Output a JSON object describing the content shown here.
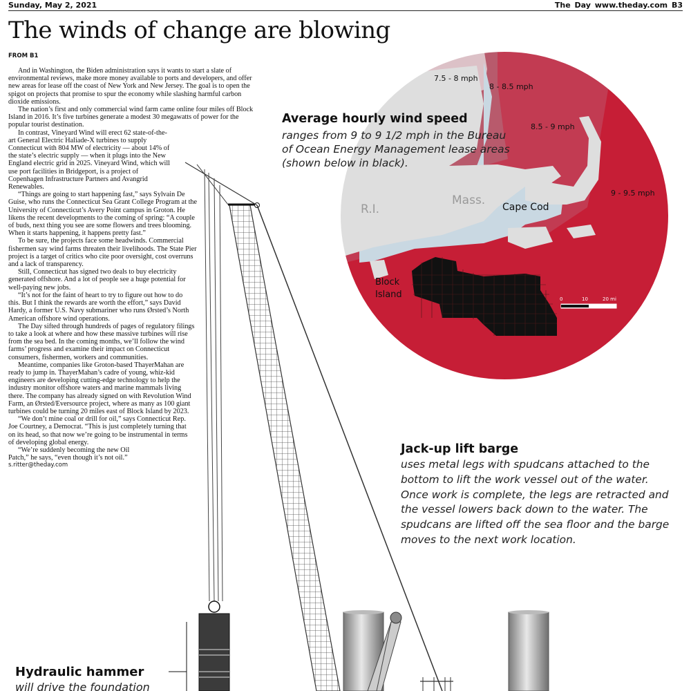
{
  "header": {
    "date": "Sunday, May 2, 2021",
    "paper": "The Day",
    "site": "www.theday.com",
    "page": "B3"
  },
  "headline": "The winds of change are blowing",
  "dateline": "FROM B1",
  "story": [
    "And in Washington, the Biden administration says it wants to start a slate of environmental reviews, make more money available to ports and developers, and offer new areas for lease off the coast of New York and New Jersey. The goal is to open the spigot on projects that promise to spur the economy while slashing harmful carbon dioxide emissions.",
    "The nation’s first and only commercial wind farm came online four miles off Block Island in 2016. It’s five turbines generate a modest 30 megawatts of power for the popular tourist destination.",
    "In contrast, Vineyard Wind will erect 62 state-of-the-art General Electric Haliade-X turbines to supply Connecticut with 804 MW of electricity — about 14% of the state’s electric supply — when it plugs into the New England electric grid in 2025. Vineyard Wind, which will use port facilities in Bridgeport, is a project of Copenhagen Infrastructure Partners and Avangrid Renewables.",
    "“Things are going to start happening fast,” says Sylvain De Guise, who runs the Connecticut Sea Grant College Program at the University of Connecticut’s Avery Point campus in Groton. He likens the recent developments to the coming of spring: “A couple of buds, next thing you see are some flowers and trees blooming. When it starts happening, it happens pretty fast.”",
    "To be sure, the projects face some headwinds. Commercial fishermen say wind farms threaten their livelihoods. The State Pier project is a target of critics who cite poor oversight, cost overruns and a lack of transparency.",
    "Still, Connecticut has signed two deals to buy electricity generated offshore. And a lot of people see a huge potential for well-paying new jobs.",
    "“It’s not for the faint of heart to try to figure out how to do this. But I think the rewards are worth the effort,” says David Hardy, a former U.S. Navy submariner who runs Ørsted’s North American offshore wind operations.",
    "The Day sifted through hundreds of pages of regulatory filings to take a look at where and how these massive turbines will rise from the sea bed. In the coming months, we’ll follow the wind farms’ progress and examine their impact on Connecticut consumers, fishermen, workers and communities.",
    "Meantime, companies like Groton-based ThayerMahan are ready to jump in. ThayerMahan’s cadre of young, whiz-kid engineers are developing cutting-edge technology to help the industry monitor offshore waters and marine mammals living there. The company has already signed on with Revolution Wind Farm, an Ørsted/Eversource project, where as many as 100 giant turbines could be turning 20 miles east of Block Island by 2023.",
    "“We don’t mine coal or drill for oil,” says Connecticut Rep. Joe Courtney, a Democrat. “This is just completely turning that on its head, so that now we’re going to be instrumental in terms of developing global energy.",
    "“We’re suddenly becoming the new Oil Patch,” he says, “even though it’s not oil.”"
  ],
  "signature": "s.ritter@theday.com",
  "map": {
    "title": "Average hourly wind speed",
    "description": "ranges from 9 to 9 1/2 mph in the Bureau of Ocean Energy Management lease areas (shown below in black).",
    "zones": [
      {
        "label": "7.5 - 8 mph",
        "color": "#dcc1c7"
      },
      {
        "label": "8 - 8.5 mph",
        "color": "#b85a6c"
      },
      {
        "label": "8.5 - 9 mph",
        "color": "#c23b52"
      },
      {
        "label": "9 - 9.5 mph",
        "color": "#c61e36"
      }
    ],
    "places": {
      "ri": "R.I.",
      "mass": "Mass.",
      "cape": "Cape Cod",
      "block_line1": "Block",
      "block_line2": "Island"
    },
    "scale": {
      "ticks": [
        "0",
        "10",
        "20 mi"
      ]
    },
    "colors": {
      "land": "#dedede",
      "water": "#c9d8e2",
      "lease": "#111111"
    }
  },
  "jackup": {
    "title": "Jack-up lift barge",
    "description": "uses metal legs with spudcans attached to the bottom to lift the work vessel out of the water. Once work is complete, the legs are retracted and the vessel lowers back down to the water. The spudcans are lifted off the sea floor and the barge moves to the next work location."
  },
  "hammer": {
    "title": "Hydraulic hammer",
    "description": "will drive the foundation"
  }
}
